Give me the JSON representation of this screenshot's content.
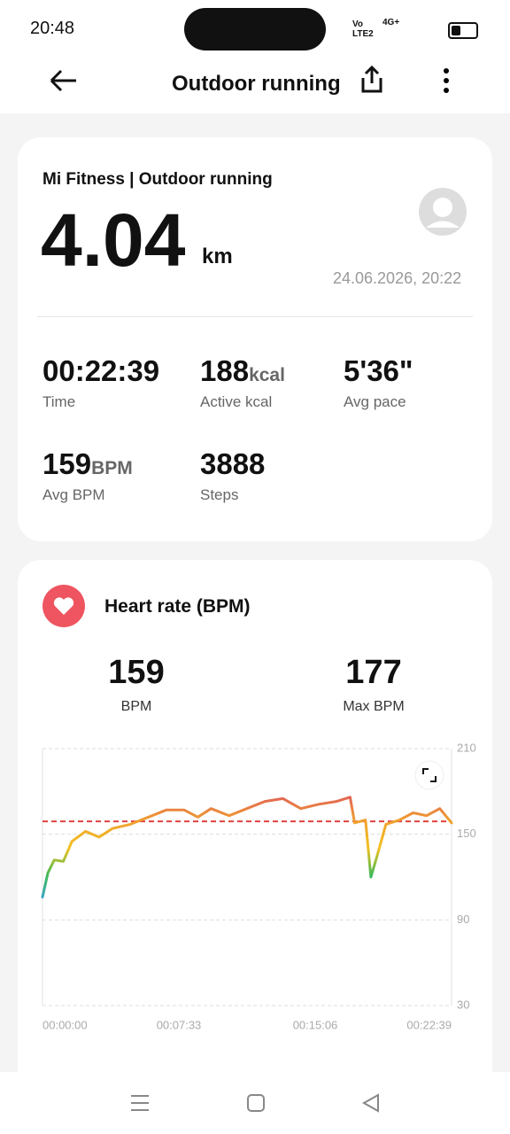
{
  "status_bar": {
    "time": "20:48",
    "carrier": "Vo LTE2",
    "network": "4G+"
  },
  "header": {
    "title": "Outdoor running"
  },
  "summary": {
    "source": "Mi Fitness | Outdoor running",
    "distance": "4.04",
    "distance_unit": "km",
    "datetime": "24.06.2026, 20:22",
    "stats": [
      {
        "value": "00:22:39",
        "label": "Time"
      },
      {
        "value": "188",
        "unit": "kcal",
        "label": "Active kcal"
      },
      {
        "value": "5'36\"",
        "label": "Avg pace"
      },
      {
        "value": "159",
        "unit": "BPM",
        "label": "Avg BPM"
      },
      {
        "value": "3888",
        "label": "Steps"
      }
    ]
  },
  "heart_rate": {
    "title": "Heart rate (BPM)",
    "avg": "159",
    "avg_label": "BPM",
    "max": "177",
    "max_label": "Max BPM"
  },
  "chart_data": {
    "type": "line",
    "x": [
      0,
      18,
      39,
      69,
      98,
      143,
      188,
      232,
      292,
      352,
      411,
      471,
      516,
      560,
      620,
      679,
      739,
      799,
      858,
      918,
      977,
      1022,
      1037,
      1073,
      1091,
      1112,
      1141,
      1186,
      1231,
      1276,
      1320,
      1359
    ],
    "values": [
      106,
      123,
      132,
      131,
      145,
      152,
      148,
      154,
      157,
      162,
      167,
      167,
      162,
      168,
      163,
      168,
      173,
      175,
      168,
      171,
      173,
      176,
      158,
      160,
      120,
      135,
      157,
      160,
      165,
      163,
      168,
      158
    ],
    "color": "#f0a030",
    "xlim": [
      0,
      1359
    ],
    "xticks": [
      {
        "value": 0,
        "label": "00:00:00"
      },
      {
        "value": 453,
        "label": "00:07:33"
      },
      {
        "value": 906,
        "label": "00:15:06"
      },
      {
        "value": 1359,
        "label": "00:22:39"
      }
    ],
    "ylim": [
      30,
      210
    ],
    "yticks": [
      30,
      90,
      150,
      210
    ],
    "y_axis_side": "right",
    "reference_line": 159,
    "reference_color": "#e04040",
    "grid": true
  }
}
